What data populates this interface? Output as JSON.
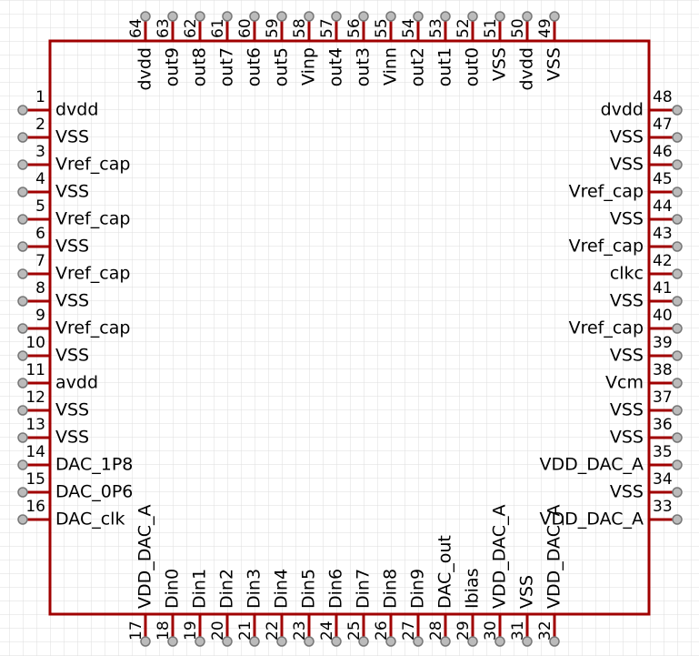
{
  "pins": {
    "left": [
      {
        "number": "1",
        "name": "dvdd"
      },
      {
        "number": "2",
        "name": "VSS"
      },
      {
        "number": "3",
        "name": "Vref_cap"
      },
      {
        "number": "4",
        "name": "VSS"
      },
      {
        "number": "5",
        "name": "Vref_cap"
      },
      {
        "number": "6",
        "name": "VSS"
      },
      {
        "number": "7",
        "name": "Vref_cap"
      },
      {
        "number": "8",
        "name": "VSS"
      },
      {
        "number": "9",
        "name": "Vref_cap"
      },
      {
        "number": "10",
        "name": "VSS"
      },
      {
        "number": "11",
        "name": "avdd"
      },
      {
        "number": "12",
        "name": "VSS"
      },
      {
        "number": "13",
        "name": "VSS"
      },
      {
        "number": "14",
        "name": "DAC_1P8"
      },
      {
        "number": "15",
        "name": "DAC_0P6"
      },
      {
        "number": "16",
        "name": "DAC_clk"
      }
    ],
    "right": [
      {
        "number": "48",
        "name": "dvdd"
      },
      {
        "number": "47",
        "name": "VSS"
      },
      {
        "number": "46",
        "name": "VSS"
      },
      {
        "number": "45",
        "name": "Vref_cap"
      },
      {
        "number": "44",
        "name": "VSS"
      },
      {
        "number": "43",
        "name": "Vref_cap"
      },
      {
        "number": "42",
        "name": "clkc"
      },
      {
        "number": "41",
        "name": "VSS"
      },
      {
        "number": "40",
        "name": "Vref_cap"
      },
      {
        "number": "39",
        "name": "VSS"
      },
      {
        "number": "38",
        "name": "Vcm"
      },
      {
        "number": "37",
        "name": "VSS"
      },
      {
        "number": "36",
        "name": "VSS"
      },
      {
        "number": "35",
        "name": "VDD_DAC_A"
      },
      {
        "number": "34",
        "name": "VSS"
      },
      {
        "number": "33",
        "name": "VDD_DAC_A"
      }
    ],
    "top": [
      {
        "number": "64",
        "name": "dvdd"
      },
      {
        "number": "63",
        "name": "out9"
      },
      {
        "number": "62",
        "name": "out8"
      },
      {
        "number": "61",
        "name": "out7"
      },
      {
        "number": "60",
        "name": "out6"
      },
      {
        "number": "59",
        "name": "out5"
      },
      {
        "number": "58",
        "name": "Vinp"
      },
      {
        "number": "57",
        "name": "out4"
      },
      {
        "number": "56",
        "name": "out3"
      },
      {
        "number": "55",
        "name": "Vinn"
      },
      {
        "number": "54",
        "name": "out2"
      },
      {
        "number": "53",
        "name": "out1"
      },
      {
        "number": "52",
        "name": "out0"
      },
      {
        "number": "51",
        "name": "VSS"
      },
      {
        "number": "50",
        "name": "dvdd"
      },
      {
        "number": "49",
        "name": "VSS"
      }
    ],
    "bottom": [
      {
        "number": "17",
        "name": "VDD_DAC_A"
      },
      {
        "number": "18",
        "name": "Din0"
      },
      {
        "number": "19",
        "name": "Din1"
      },
      {
        "number": "20",
        "name": "Din2"
      },
      {
        "number": "21",
        "name": "Din3"
      },
      {
        "number": "22",
        "name": "Din4"
      },
      {
        "number": "23",
        "name": "Din5"
      },
      {
        "number": "24",
        "name": "Din6"
      },
      {
        "number": "25",
        "name": "Din7"
      },
      {
        "number": "26",
        "name": "Din8"
      },
      {
        "number": "27",
        "name": "Din9"
      },
      {
        "number": "28",
        "name": "DAC_out"
      },
      {
        "number": "29",
        "name": "Ibias"
      },
      {
        "number": "30",
        "name": "VDD_DAC_A"
      },
      {
        "number": "31",
        "name": "VSS"
      },
      {
        "number": "32",
        "name": "VDD_DAC_A"
      }
    ]
  }
}
